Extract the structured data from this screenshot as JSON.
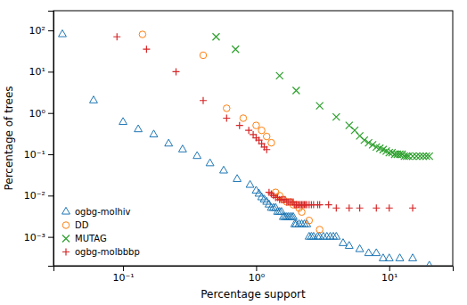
{
  "chart_data": {
    "type": "scatter",
    "xlabel": "Percentage support",
    "ylabel": "Percentage of trees",
    "log": true,
    "grid": false,
    "legend": "lower left",
    "xlim": [
      0.03,
      30
    ],
    "ylim": [
      0.0002,
      300
    ],
    "xticks": [
      {
        "value": 0.1,
        "label": "10⁻¹"
      },
      {
        "value": 1,
        "label": "10⁰"
      },
      {
        "value": 10,
        "label": "10¹"
      }
    ],
    "yticks": [
      {
        "value": 0.001,
        "label": "10⁻³"
      },
      {
        "value": 0.01,
        "label": "10⁻²"
      },
      {
        "value": 0.1,
        "label": "10⁻¹"
      },
      {
        "value": 1,
        "label": "10⁰"
      },
      {
        "value": 10,
        "label": "10¹"
      },
      {
        "value": 100,
        "label": "10²"
      }
    ],
    "series": [
      {
        "name": "ogbg-molhiv",
        "color": "#1f77b4",
        "marker": "triangle-open",
        "x": [
          0.035,
          0.06,
          0.1,
          0.13,
          0.17,
          0.22,
          0.28,
          0.36,
          0.45,
          0.57,
          0.72,
          0.9,
          1.0,
          1.05,
          1.1,
          1.15,
          1.2,
          1.25,
          1.3,
          1.35,
          1.4,
          1.45,
          1.5,
          1.55,
          1.6,
          1.65,
          1.7,
          1.75,
          1.8,
          1.85,
          1.9,
          1.95,
          2.0,
          2.1,
          2.2,
          2.3,
          2.4,
          2.5,
          2.6,
          2.7,
          2.9,
          3.0,
          3.2,
          3.4,
          3.6,
          3.8,
          4.0,
          4.5,
          5.0,
          6.0,
          7.0,
          8.0,
          9.0,
          10.0,
          12.0,
          15.0,
          20.0
        ],
        "values": [
          80,
          2.0,
          0.6,
          0.4,
          0.3,
          0.18,
          0.13,
          0.09,
          0.06,
          0.04,
          0.025,
          0.018,
          0.013,
          0.011,
          0.009,
          0.008,
          0.007,
          0.006,
          0.005,
          0.005,
          0.005,
          0.004,
          0.004,
          0.004,
          0.003,
          0.003,
          0.003,
          0.003,
          0.003,
          0.003,
          0.003,
          0.002,
          0.002,
          0.002,
          0.002,
          0.002,
          0.002,
          0.001,
          0.001,
          0.001,
          0.001,
          0.001,
          0.001,
          0.001,
          0.001,
          0.001,
          0.001,
          0.0007,
          0.0006,
          0.0005,
          0.0004,
          0.0004,
          0.0003,
          0.0003,
          0.0003,
          0.0003,
          0.0002
        ]
      },
      {
        "name": "DD",
        "color": "#ff7f0e",
        "marker": "circle-open",
        "x": [
          0.14,
          0.4,
          0.6,
          0.8,
          1.0,
          1.1,
          1.2,
          1.3,
          1.4,
          1.5,
          1.6,
          1.7,
          1.8,
          1.9,
          2.0,
          2.1,
          2.2,
          2.5,
          3.0
        ],
        "values": [
          80,
          25,
          1.3,
          0.75,
          0.5,
          0.38,
          0.27,
          0.19,
          0.012,
          0.01,
          0.008,
          0.007,
          0.007,
          0.006,
          0.006,
          0.005,
          0.004,
          0.0025,
          0.0015
        ]
      },
      {
        "name": "MUTAG",
        "color": "#2ca02c",
        "marker": "x",
        "x": [
          0.5,
          0.7,
          1.5,
          2.0,
          3.0,
          4.0,
          5.0,
          5.5,
          6.0,
          6.5,
          7.0,
          7.5,
          8.0,
          8.5,
          9.0,
          9.5,
          10.0,
          10.5,
          11.0,
          11.5,
          12.0,
          12.5,
          13.0,
          13.5,
          14.0,
          15.0,
          16.0,
          17.0,
          18.0,
          19.0,
          20.0
        ],
        "values": [
          70,
          35,
          8.0,
          3.5,
          1.5,
          0.8,
          0.5,
          0.38,
          0.28,
          0.22,
          0.19,
          0.17,
          0.15,
          0.14,
          0.13,
          0.12,
          0.11,
          0.11,
          0.1,
          0.1,
          0.1,
          0.1,
          0.09,
          0.09,
          0.09,
          0.09,
          0.09,
          0.09,
          0.09,
          0.09,
          0.09
        ]
      },
      {
        "name": "ogbg-molbbbp",
        "color": "#d62728",
        "marker": "plus",
        "x": [
          0.09,
          0.15,
          0.25,
          0.4,
          0.6,
          0.75,
          0.88,
          0.95,
          1.0,
          1.05,
          1.1,
          1.15,
          1.2,
          1.25,
          1.3,
          1.35,
          1.4,
          1.45,
          1.5,
          1.55,
          1.6,
          1.65,
          1.7,
          1.75,
          1.8,
          1.85,
          1.9,
          1.95,
          2.0,
          2.05,
          2.1,
          2.15,
          2.2,
          2.25,
          2.3,
          2.35,
          2.4,
          2.5,
          2.6,
          2.7,
          2.9,
          3.0,
          3.5,
          4.0,
          5.0,
          6.0,
          8.0,
          10.0,
          15.0
        ],
        "values": [
          70,
          35,
          10,
          2.0,
          0.75,
          0.5,
          0.38,
          0.3,
          0.25,
          0.22,
          0.18,
          0.15,
          0.13,
          0.012,
          0.011,
          0.01,
          0.009,
          0.009,
          0.008,
          0.008,
          0.008,
          0.008,
          0.007,
          0.007,
          0.007,
          0.007,
          0.007,
          0.006,
          0.006,
          0.006,
          0.006,
          0.006,
          0.006,
          0.006,
          0.006,
          0.006,
          0.006,
          0.006,
          0.006,
          0.006,
          0.006,
          0.006,
          0.006,
          0.005,
          0.005,
          0.005,
          0.005,
          0.005,
          0.005
        ]
      }
    ]
  }
}
